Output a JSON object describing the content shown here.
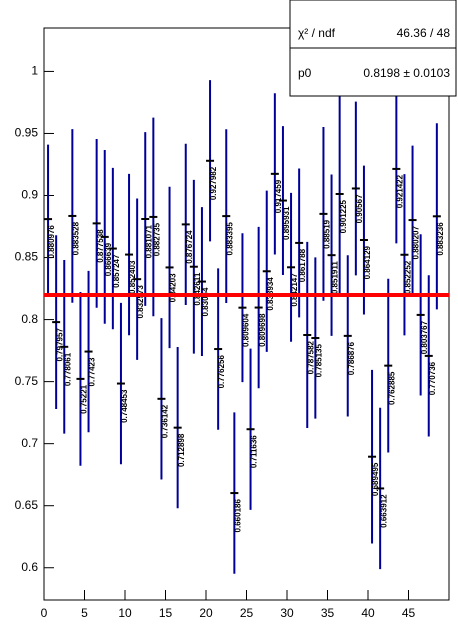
{
  "chart_data": {
    "type": "errorbar",
    "x": [
      0.5,
      1.5,
      2.5,
      3.5,
      4.5,
      5.5,
      6.5,
      7.5,
      8.5,
      9.5,
      10.5,
      11.5,
      12.5,
      13.5,
      14.5,
      15.5,
      16.5,
      17.5,
      18.5,
      19.5,
      20.5,
      21.5,
      22.5,
      23.5,
      24.5,
      25.5,
      26.5,
      27.5,
      28.5,
      29.5,
      30.5,
      31.5,
      32.5,
      33.5,
      34.5,
      35.5,
      36.5,
      37.5,
      38.5,
      39.5,
      40.5,
      41.5,
      42.5,
      43.5,
      44.5,
      45.5,
      46.5,
      47.5,
      48.5
    ],
    "series": [
      {
        "color": "#000099",
        "values": [
          0.880976,
          0.797957,
          0.778061,
          0.883528,
          0.75221,
          0.77423,
          0.877538,
          0.866639,
          0.857247,
          0.748453,
          0.852403,
          0.832573,
          0.881071,
          0.882735,
          0.736142,
          0.84203,
          0.712898,
          0.876724,
          0.842611,
          0.83064,
          0.927982,
          0.776256,
          0.883395,
          0.660186,
          0.809604,
          0.711636,
          0.809698,
          0.838934,
          0.917459,
          0.895931,
          0.842147,
          0.861788,
          0.787582,
          0.785135,
          0.88519,
          0.851911,
          0.901225,
          0.786876,
          0.90567,
          0.864129,
          0.689495,
          0.663912,
          0.762885,
          0.921422,
          0.852252,
          0.880207,
          0.803767,
          0.770736,
          0.883236
        ],
        "value_labels": [
          "0.880976",
          "0.797957",
          "0.778061",
          "0.883528",
          "0.75221",
          "0.77423",
          "0.877538",
          "0.866639",
          "0.857247",
          "0.748453",
          "0.852403",
          "0.832573",
          "0.881071",
          "0.882735",
          "0.736142",
          "0.84203",
          "0.712898",
          "0.876724",
          "0.842611",
          "0.83064",
          "0.927982",
          "0.776256",
          "0.883395",
          "0.660186",
          "0.809604",
          "0.711636",
          "0.809698",
          "0.838934",
          "0.917459",
          "0.895931",
          "0.842147",
          "0.861788",
          "0.787582",
          "0.785135",
          "0.88519",
          "0.851911",
          "0.901225",
          "0.786876",
          "0.90567",
          "0.864129",
          "0.689495",
          "0.663912",
          "0.762885",
          "0.921422",
          "0.852252",
          "0.880207",
          "0.803767",
          "0.770736",
          "0.883236"
        ],
        "errors": [
          0.06,
          0.07,
          0.07,
          0.07,
          0.07,
          0.065,
          0.068,
          0.07,
          0.065,
          0.065,
          0.065,
          0.065,
          0.07,
          0.08,
          0.065,
          0.065,
          0.065,
          0.065,
          0.07,
          0.06,
          0.065,
          0.065,
          0.07,
          0.065,
          0.06,
          0.065,
          0.065,
          0.065,
          0.065,
          0.06,
          0.06,
          0.06,
          0.075,
          0.065,
          0.07,
          0.065,
          0.08,
          0.065,
          0.07,
          0.06,
          0.07,
          0.065,
          0.07,
          0.06,
          0.065,
          0.06,
          0.065,
          0.065,
          0.075
        ]
      }
    ],
    "fit": {
      "color": "#ff0000",
      "value": 0.8198
    },
    "stats": [
      [
        "χ² / ndf",
        "46.36 / 48"
      ],
      [
        "p0",
        "0.8198 ± 0.0103"
      ]
    ],
    "xlim": [
      0,
      50
    ],
    "ylim": [
      0.574,
      1.035
    ],
    "xticks": [
      0,
      5,
      10,
      15,
      20,
      25,
      30,
      35,
      40,
      45
    ],
    "yticks": [
      0.6,
      0.65,
      0.7,
      0.75,
      0.8,
      0.85,
      0.9,
      0.95,
      1
    ]
  }
}
